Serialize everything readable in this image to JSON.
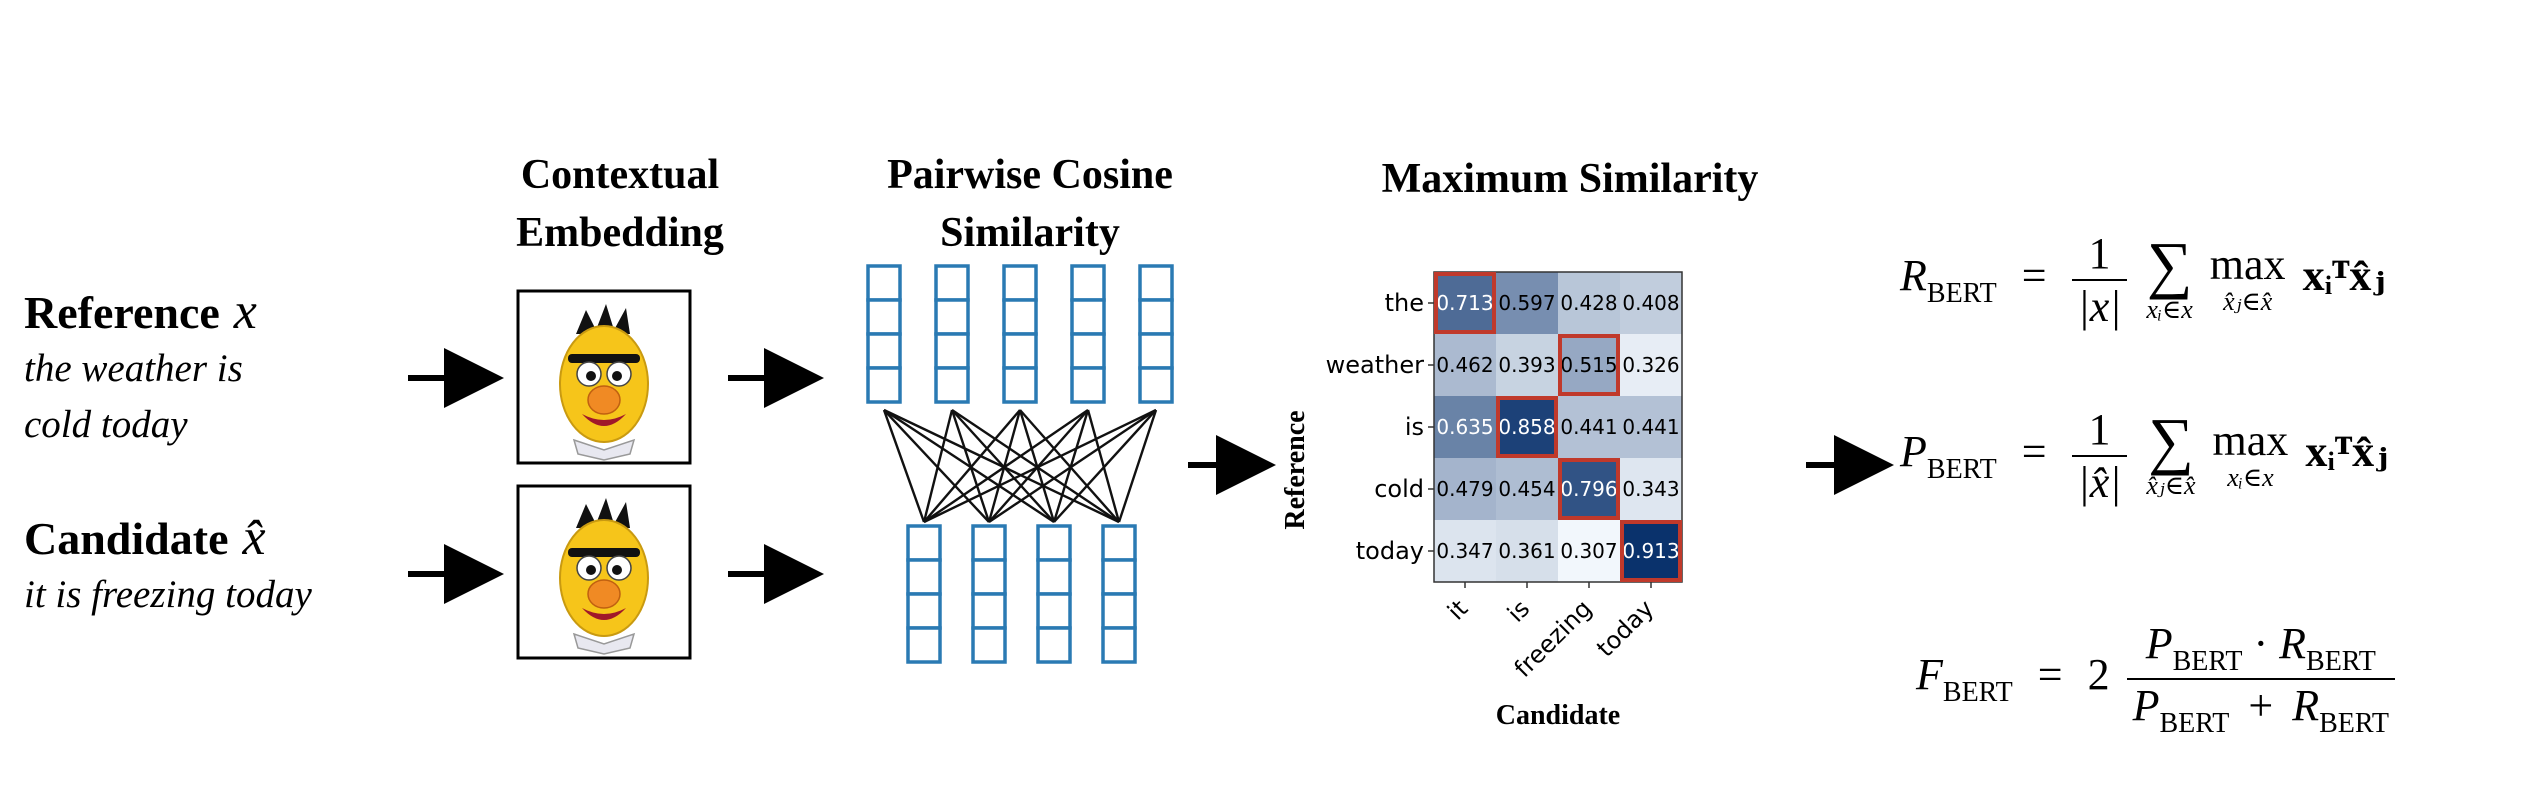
{
  "left": {
    "reference_label": "Reference",
    "reference_var": "x",
    "reference_line1": "the weather is",
    "reference_line2": "cold today",
    "candidate_label": "Candidate",
    "candidate_var": "x̂",
    "candidate_line1": "it is freezing today"
  },
  "stages": {
    "embedding_line1": "Contextual",
    "embedding_line2": "Embedding",
    "cosine_line1": "Pairwise Cosine",
    "cosine_line2": "Similarity",
    "maxsim_title": "Maximum Similarity"
  },
  "icons": {
    "embedding_model": "muppet-face-icon",
    "arrow": "arrow-right-icon"
  },
  "colors": {
    "tile_stroke": "#2a7ab3",
    "highlight": "#c0392b",
    "heat_low": "#f7fbff",
    "heat_high": "#08306b"
  },
  "chart_data": {
    "type": "heatmap",
    "xlabel": "Candidate",
    "ylabel": "Reference",
    "x_categories": [
      "it",
      "is",
      "freezing",
      "today"
    ],
    "y_categories": [
      "the",
      "weather",
      "is",
      "cold",
      "today"
    ],
    "values": [
      [
        0.713,
        0.597,
        0.428,
        0.408
      ],
      [
        0.462,
        0.393,
        0.515,
        0.326
      ],
      [
        0.635,
        0.858,
        0.441,
        0.441
      ],
      [
        0.479,
        0.454,
        0.796,
        0.343
      ],
      [
        0.347,
        0.361,
        0.307,
        0.913
      ]
    ],
    "value_labels": [
      [
        "0.713",
        "0.597",
        "0.428",
        "0.408"
      ],
      [
        "0.462",
        "0.393",
        "0.515",
        "0.326"
      ],
      [
        "0.635",
        "0.858",
        "0.441",
        "0.441"
      ],
      [
        "0.479",
        "0.454",
        "0.796",
        "0.343"
      ],
      [
        "0.347",
        "0.361",
        "0.307",
        "0.913"
      ]
    ],
    "highlighted": [
      [
        0,
        0
      ],
      [
        1,
        2
      ],
      [
        2,
        1
      ],
      [
        3,
        2
      ],
      [
        4,
        3
      ]
    ]
  },
  "equations": {
    "r_lhs": "R",
    "p_lhs": "P",
    "f_lhs": "F",
    "bert_sub": "BERT",
    "eq_sign": "=",
    "one": "1",
    "norm_x": "|x|",
    "norm_xhat": "|x̂|",
    "sum": "∑",
    "max": "max",
    "sum_over_x": "xᵢ∈x",
    "sum_over_xhat": "x̂ⱼ∈x̂",
    "max_over_xhat": "x̂ⱼ∈x̂",
    "max_over_x": "xᵢ∈x",
    "term": "xᵢᵀx̂ⱼ",
    "two": "2",
    "f_num": "P · R",
    "f_den_plus": "+"
  }
}
